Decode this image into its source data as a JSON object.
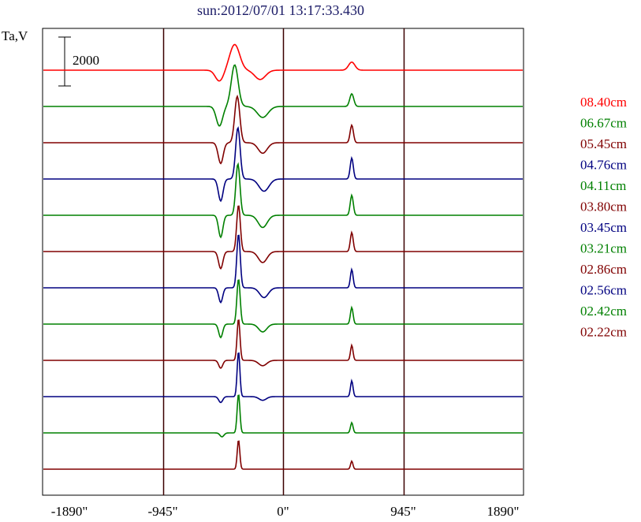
{
  "chart_data": {
    "type": "line",
    "title": "sun:2012/07/01 13:17:33.430",
    "ylabel": "Ta,V",
    "xlabel": "",
    "x_ticks": [
      "-1890\"",
      "-945\"",
      "0\"",
      "945\"",
      "1890\""
    ],
    "x_tick_values": [
      -1890,
      -945,
      0,
      945,
      1890
    ],
    "xlim": [
      -1890,
      1890
    ],
    "vertical_gridlines_at": [
      -945,
      0,
      945
    ],
    "scale_bar": {
      "label": "2000",
      "value": 2000
    },
    "legend_placement": "right",
    "series": [
      {
        "name": "08.40cm",
        "color": "#ff0000",
        "peaks": [
          {
            "x": -380,
            "height": 1050,
            "width": 55
          },
          {
            "x": 540,
            "height": 330,
            "width": 35
          }
        ],
        "dips": [
          {
            "x": -500,
            "depth": 450,
            "width": 45
          },
          {
            "x": -180,
            "depth": 380,
            "width": 60
          }
        ]
      },
      {
        "name": "06.67cm",
        "color": "#008000",
        "peaks": [
          {
            "x": -380,
            "height": 1700,
            "width": 38
          },
          {
            "x": 540,
            "height": 520,
            "width": 22
          }
        ],
        "dips": [
          {
            "x": -500,
            "depth": 800,
            "width": 35
          },
          {
            "x": -160,
            "depth": 450,
            "width": 60
          }
        ]
      },
      {
        "name": "05.45cm",
        "color": "#800000",
        "peaks": [
          {
            "x": -360,
            "height": 1900,
            "width": 28
          },
          {
            "x": 540,
            "height": 720,
            "width": 18
          }
        ],
        "dips": [
          {
            "x": -490,
            "depth": 850,
            "width": 28
          },
          {
            "x": -160,
            "depth": 430,
            "width": 50
          }
        ]
      },
      {
        "name": "04.76cm",
        "color": "#000080",
        "peaks": [
          {
            "x": -355,
            "height": 2100,
            "width": 25
          },
          {
            "x": 540,
            "height": 860,
            "width": 17
          }
        ],
        "dips": [
          {
            "x": -490,
            "depth": 900,
            "width": 26
          },
          {
            "x": -150,
            "depth": 500,
            "width": 55
          }
        ]
      },
      {
        "name": "04.11cm",
        "color": "#008000",
        "peaks": [
          {
            "x": -355,
            "height": 2100,
            "width": 23
          },
          {
            "x": 540,
            "height": 820,
            "width": 17
          }
        ],
        "dips": [
          {
            "x": -490,
            "depth": 900,
            "width": 24
          },
          {
            "x": -160,
            "depth": 500,
            "width": 50
          }
        ]
      },
      {
        "name": "03.80cm",
        "color": "#800000",
        "peaks": [
          {
            "x": -350,
            "height": 1900,
            "width": 20
          },
          {
            "x": 540,
            "height": 780,
            "width": 16
          }
        ],
        "dips": [
          {
            "x": -490,
            "depth": 700,
            "width": 24
          },
          {
            "x": -160,
            "depth": 450,
            "width": 48
          }
        ]
      },
      {
        "name": "03.45cm",
        "color": "#000080",
        "peaks": [
          {
            "x": -350,
            "height": 2200,
            "width": 19
          },
          {
            "x": 540,
            "height": 750,
            "width": 15
          }
        ],
        "dips": [
          {
            "x": -490,
            "depth": 600,
            "width": 22
          },
          {
            "x": -150,
            "depth": 400,
            "width": 48
          }
        ]
      },
      {
        "name": "03.21cm",
        "color": "#008000",
        "peaks": [
          {
            "x": -350,
            "height": 1850,
            "width": 18
          },
          {
            "x": 540,
            "height": 680,
            "width": 15
          }
        ],
        "dips": [
          {
            "x": -490,
            "depth": 550,
            "width": 22
          },
          {
            "x": -160,
            "depth": 320,
            "width": 45
          }
        ]
      },
      {
        "name": "02.86cm",
        "color": "#800000",
        "peaks": [
          {
            "x": -350,
            "height": 1700,
            "width": 16
          },
          {
            "x": 540,
            "height": 620,
            "width": 14
          }
        ],
        "dips": [
          {
            "x": -490,
            "depth": 320,
            "width": 22
          },
          {
            "x": -160,
            "depth": 220,
            "width": 45
          }
        ]
      },
      {
        "name": "02.56cm",
        "color": "#000080",
        "peaks": [
          {
            "x": -350,
            "height": 1850,
            "width": 15
          },
          {
            "x": 540,
            "height": 650,
            "width": 14
          }
        ],
        "dips": [
          {
            "x": -490,
            "depth": 240,
            "width": 22
          },
          {
            "x": -160,
            "depth": 150,
            "width": 40
          }
        ]
      },
      {
        "name": "02.42cm",
        "color": "#008000",
        "peaks": [
          {
            "x": -350,
            "height": 1600,
            "width": 15
          },
          {
            "x": 540,
            "height": 420,
            "width": 14
          }
        ],
        "dips": [
          {
            "x": -480,
            "depth": 160,
            "width": 22
          }
        ]
      },
      {
        "name": "02.22cm",
        "color": "#800000",
        "peaks": [
          {
            "x": -350,
            "height": 1200,
            "width": 14
          },
          {
            "x": 540,
            "height": 330,
            "width": 13
          }
        ],
        "dips": []
      }
    ]
  }
}
